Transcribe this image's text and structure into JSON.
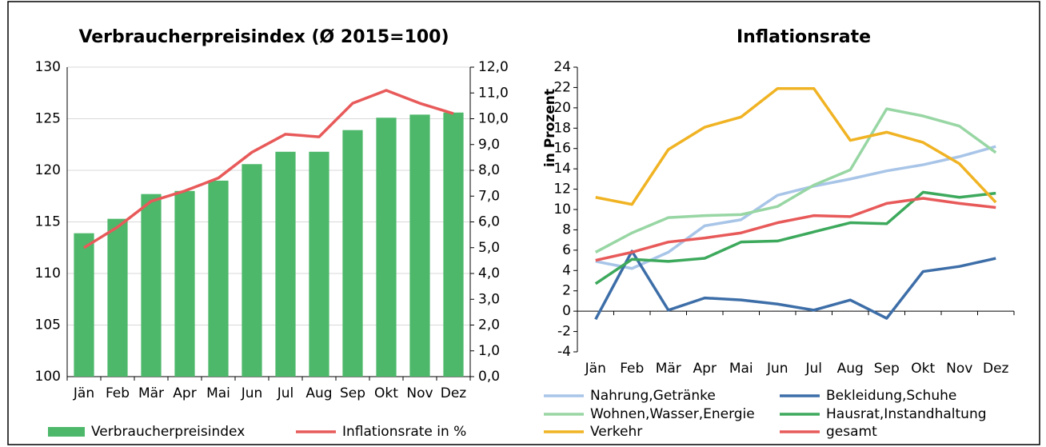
{
  "chart_data": [
    {
      "type": "bar",
      "title": "Verbraucherpreisindex (Ø 2015=100)",
      "categories": [
        "Jän",
        "Feb",
        "Mär",
        "Apr",
        "Mai",
        "Jun",
        "Jul",
        "Aug",
        "Sep",
        "Okt",
        "Nov",
        "Dez"
      ],
      "series": [
        {
          "name": "Verbraucherpreisindex",
          "type": "bar",
          "color": "#4db86a",
          "values": [
            113.9,
            115.3,
            117.7,
            118.0,
            119.0,
            120.6,
            121.8,
            121.8,
            123.9,
            125.1,
            125.4,
            125.6
          ]
        },
        {
          "name": "Inflationsrate in %",
          "type": "line",
          "axis": "y2",
          "color": "#e85a5a",
          "values": [
            5.0,
            5.8,
            6.8,
            7.2,
            7.7,
            8.7,
            9.4,
            9.3,
            10.6,
            11.1,
            10.6,
            10.2
          ]
        }
      ],
      "ylim": [
        100,
        130
      ],
      "yticks": [
        100,
        105,
        110,
        115,
        120,
        125,
        130
      ],
      "y2lim": [
        0,
        12
      ],
      "y2ticks": [
        {
          "value": 0,
          "label": "0,0"
        },
        {
          "value": 1,
          "label": "1,0"
        },
        {
          "value": 2,
          "label": "2,0"
        },
        {
          "value": 3,
          "label": "3,0"
        },
        {
          "value": 4,
          "label": "4,0"
        },
        {
          "value": 5,
          "label": "5,0"
        },
        {
          "value": 6,
          "label": "6,0"
        },
        {
          "value": 7,
          "label": "7,0"
        },
        {
          "value": 8,
          "label": "8,0"
        },
        {
          "value": 9,
          "label": "9,0"
        },
        {
          "value": 10,
          "label": "10,0"
        },
        {
          "value": 11,
          "label": "11,0"
        },
        {
          "value": 12,
          "label": "12,0"
        }
      ],
      "grid": true,
      "legend": "bottom"
    },
    {
      "type": "line",
      "title": "Inflationsrate",
      "ylabel": "in Prozent",
      "categories": [
        "Jän",
        "Feb",
        "Mär",
        "Apr",
        "Mai",
        "Jun",
        "Jul",
        "Aug",
        "Sep",
        "Okt",
        "Nov",
        "Dez"
      ],
      "series": [
        {
          "name": "Nahrung,Getränke",
          "color": "#a8c5e8",
          "values": [
            4.9,
            4.2,
            5.8,
            8.4,
            9.0,
            11.4,
            12.3,
            13.0,
            13.8,
            14.4,
            15.2,
            16.2
          ]
        },
        {
          "name": "Bekleidung,Schuhe",
          "color": "#3d6ea8",
          "values": [
            -0.8,
            5.9,
            0.1,
            1.3,
            1.1,
            0.7,
            0.1,
            1.1,
            -0.7,
            3.9,
            4.4,
            5.2
          ]
        },
        {
          "name": "Wohnen,Wasser,Energie",
          "color": "#98d6a4",
          "values": [
            5.8,
            7.7,
            9.2,
            9.4,
            9.5,
            10.3,
            12.4,
            13.9,
            19.9,
            19.2,
            18.2,
            15.6
          ]
        },
        {
          "name": "Hausrat,Instandhaltung",
          "color": "#3da95c",
          "values": [
            2.7,
            5.1,
            4.9,
            5.2,
            6.8,
            6.9,
            7.8,
            8.7,
            8.6,
            11.7,
            11.2,
            11.6
          ]
        },
        {
          "name": "Verkehr",
          "color": "#f0b323",
          "values": [
            11.2,
            10.5,
            15.9,
            18.1,
            19.1,
            21.9,
            21.9,
            16.8,
            17.6,
            16.6,
            14.5,
            10.7
          ]
        },
        {
          "name": "gesamt",
          "color": "#e85a5a",
          "values": [
            5.0,
            5.8,
            6.8,
            7.2,
            7.7,
            8.7,
            9.4,
            9.3,
            10.6,
            11.1,
            10.6,
            10.2
          ]
        }
      ],
      "ylim": [
        -4,
        24
      ],
      "yticks": [
        -4,
        -2,
        0,
        2,
        4,
        6,
        8,
        10,
        12,
        14,
        16,
        18,
        20,
        22,
        24
      ],
      "grid": false,
      "legend": "bottom"
    }
  ]
}
